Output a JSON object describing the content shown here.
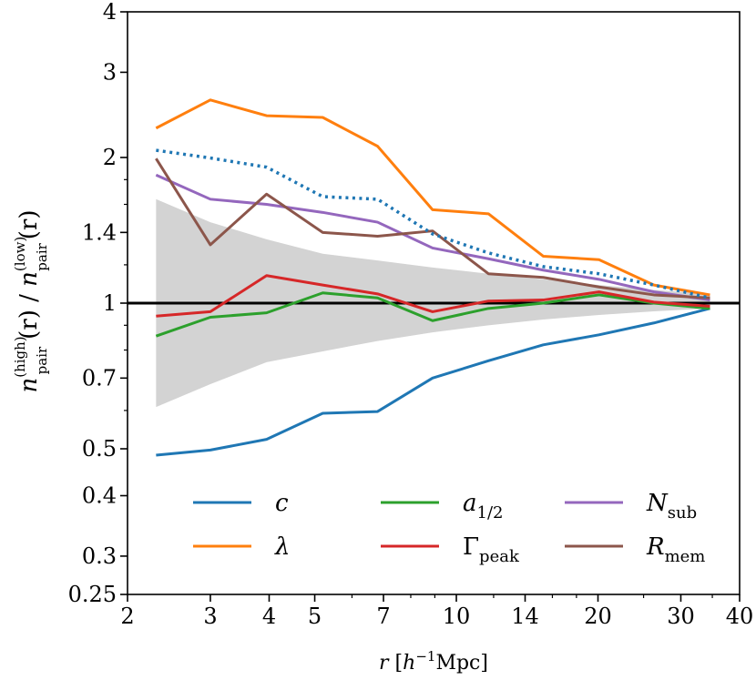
{
  "chart_data": {
    "type": "line",
    "xscale": "log",
    "yscale": "log",
    "xlim": [
      2,
      40
    ],
    "ylim": [
      0.25,
      4
    ],
    "xticks": [
      2,
      3,
      4,
      5,
      7,
      10,
      14,
      20,
      30,
      40
    ],
    "xtick_labels": [
      "2",
      "3",
      "4",
      "5",
      "7",
      "10",
      "14",
      "20",
      "30",
      "40"
    ],
    "yticks": [
      0.25,
      0.3,
      0.4,
      0.5,
      0.7,
      1,
      1.4,
      2,
      3,
      4
    ],
    "ytick_labels": [
      "0.25",
      "0.3",
      "0.4",
      "0.5",
      "0.7",
      "1",
      "1.4",
      "2",
      "3",
      "4"
    ],
    "xlabel": {
      "symbol": "r",
      "units_prefix": "[h",
      "units_exp": "−1",
      "units_suffix": "Mpc]"
    },
    "ylabel": {
      "num_base": "n",
      "num_sub": "pair",
      "num_sup": "(high)",
      "num_arg": "(r) / ",
      "den_base": "n",
      "den_sub": "pair",
      "den_sup": "(low)",
      "den_arg": "(r)"
    },
    "reference_line": 1,
    "x": [
      2.3,
      3.0,
      3.95,
      5.2,
      6.8,
      8.9,
      11.7,
      15.3,
      20.1,
      26.3,
      34.6
    ],
    "band": {
      "color": "#d3d3d3",
      "lower": [
        0.61,
        0.68,
        0.755,
        0.795,
        0.835,
        0.87,
        0.9,
        0.925,
        0.945,
        0.962,
        0.975
      ],
      "upper": [
        1.64,
        1.47,
        1.355,
        1.265,
        1.225,
        1.185,
        1.15,
        1.12,
        1.09,
        1.065,
        1.045
      ]
    },
    "series": [
      {
        "name": "c",
        "label_base": "c",
        "label_sub": "",
        "color": "#1f77b4",
        "dashed": false,
        "values": [
          0.485,
          0.497,
          0.523,
          0.592,
          0.597,
          0.7,
          0.76,
          0.82,
          0.86,
          0.91,
          0.975
        ]
      },
      {
        "name": "lambda",
        "label_base": "λ",
        "label_sub": "",
        "color": "#ff7f0e",
        "dashed": false,
        "values": [
          2.3,
          2.63,
          2.44,
          2.42,
          2.11,
          1.56,
          1.53,
          1.25,
          1.23,
          1.09,
          1.04
        ]
      },
      {
        "name": "a_half",
        "label_base": "a",
        "label_sub": "1/2",
        "color": "#2ca02c",
        "dashed": false,
        "values": [
          0.855,
          0.935,
          0.955,
          1.05,
          1.025,
          0.92,
          0.975,
          1.0,
          1.04,
          1.0,
          0.975
        ]
      },
      {
        "name": "gamma_peak",
        "label_base": "Γ",
        "label_sub": "peak",
        "color": "#d62728",
        "dashed": false,
        "values": [
          0.94,
          0.96,
          1.14,
          1.09,
          1.045,
          0.96,
          1.01,
          1.015,
          1.055,
          1.005,
          0.985
        ]
      },
      {
        "name": "n_sub",
        "label_base": "N",
        "label_sub": "sub",
        "color": "#9467bd",
        "dashed": false,
        "values": [
          1.84,
          1.64,
          1.6,
          1.54,
          1.47,
          1.3,
          1.235,
          1.17,
          1.12,
          1.055,
          1.015
        ]
      },
      {
        "name": "r_mem",
        "label_base": "R",
        "label_sub": "mem",
        "color": "#8c564b",
        "dashed": false,
        "values": [
          1.99,
          1.32,
          1.68,
          1.4,
          1.375,
          1.41,
          1.15,
          1.13,
          1.08,
          1.04,
          1.025
        ]
      },
      {
        "name": "combined",
        "label_base": "",
        "label_sub": "",
        "color": "#1f77b4",
        "dashed": true,
        "values": [
          2.07,
          1.995,
          1.91,
          1.66,
          1.64,
          1.39,
          1.27,
          1.19,
          1.15,
          1.09,
          1.025
        ]
      }
    ],
    "legend": {
      "placement": "lower-right",
      "columns": 3,
      "order": [
        "c",
        "lambda",
        "a_half",
        "gamma_peak",
        "n_sub",
        "r_mem"
      ]
    }
  }
}
